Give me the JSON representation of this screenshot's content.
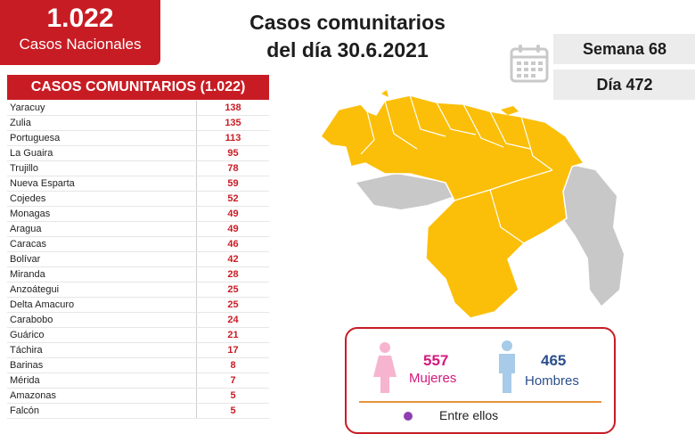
{
  "header": {
    "total_number": "1.022",
    "total_label": "Casos Nacionales",
    "title_line1": "Casos comunitarios",
    "title_line2": "del día 30.6.2021",
    "week": "Semana 68",
    "day": "Día 472"
  },
  "table": {
    "title": "CASOS COMUNITARIOS (1.022)",
    "rows": [
      {
        "state": "Yaracuy",
        "cases": "138"
      },
      {
        "state": "Zulia",
        "cases": "135"
      },
      {
        "state": "Portuguesa",
        "cases": "113"
      },
      {
        "state": "La Guaira",
        "cases": "95"
      },
      {
        "state": "Trujillo",
        "cases": "78"
      },
      {
        "state": "Nueva Esparta",
        "cases": "59"
      },
      {
        "state": "Cojedes",
        "cases": "52"
      },
      {
        "state": "Monagas",
        "cases": "49"
      },
      {
        "state": "Aragua",
        "cases": "49"
      },
      {
        "state": "Caracas",
        "cases": "46"
      },
      {
        "state": "Bolívar",
        "cases": "42"
      },
      {
        "state": "Miranda",
        "cases": "28"
      },
      {
        "state": "Anzoátegui",
        "cases": "25"
      },
      {
        "state": "Delta Amacuro",
        "cases": "25"
      },
      {
        "state": "Carabobo",
        "cases": "24"
      },
      {
        "state": "Guárico",
        "cases": "21"
      },
      {
        "state": "Táchira",
        "cases": "17"
      },
      {
        "state": "Barinas",
        "cases": "8"
      },
      {
        "state": "Mérida",
        "cases": "7"
      },
      {
        "state": "Amazonas",
        "cases": "5"
      },
      {
        "state": "Falcón",
        "cases": "5"
      }
    ]
  },
  "gender": {
    "women_count": "557",
    "women_label": "Mujeres",
    "men_count": "465",
    "men_label": "Hombres",
    "among_text": "Entre ellos"
  },
  "colors": {
    "brand_red": "#c81c24",
    "map_fill": "#fbbf0a",
    "map_grey": "#c8c8c8",
    "women": "#d6187d",
    "men": "#2b4f8c"
  },
  "icons": {
    "calendar": "calendar-icon",
    "female": "female-figure-icon",
    "male": "male-figure-icon"
  }
}
